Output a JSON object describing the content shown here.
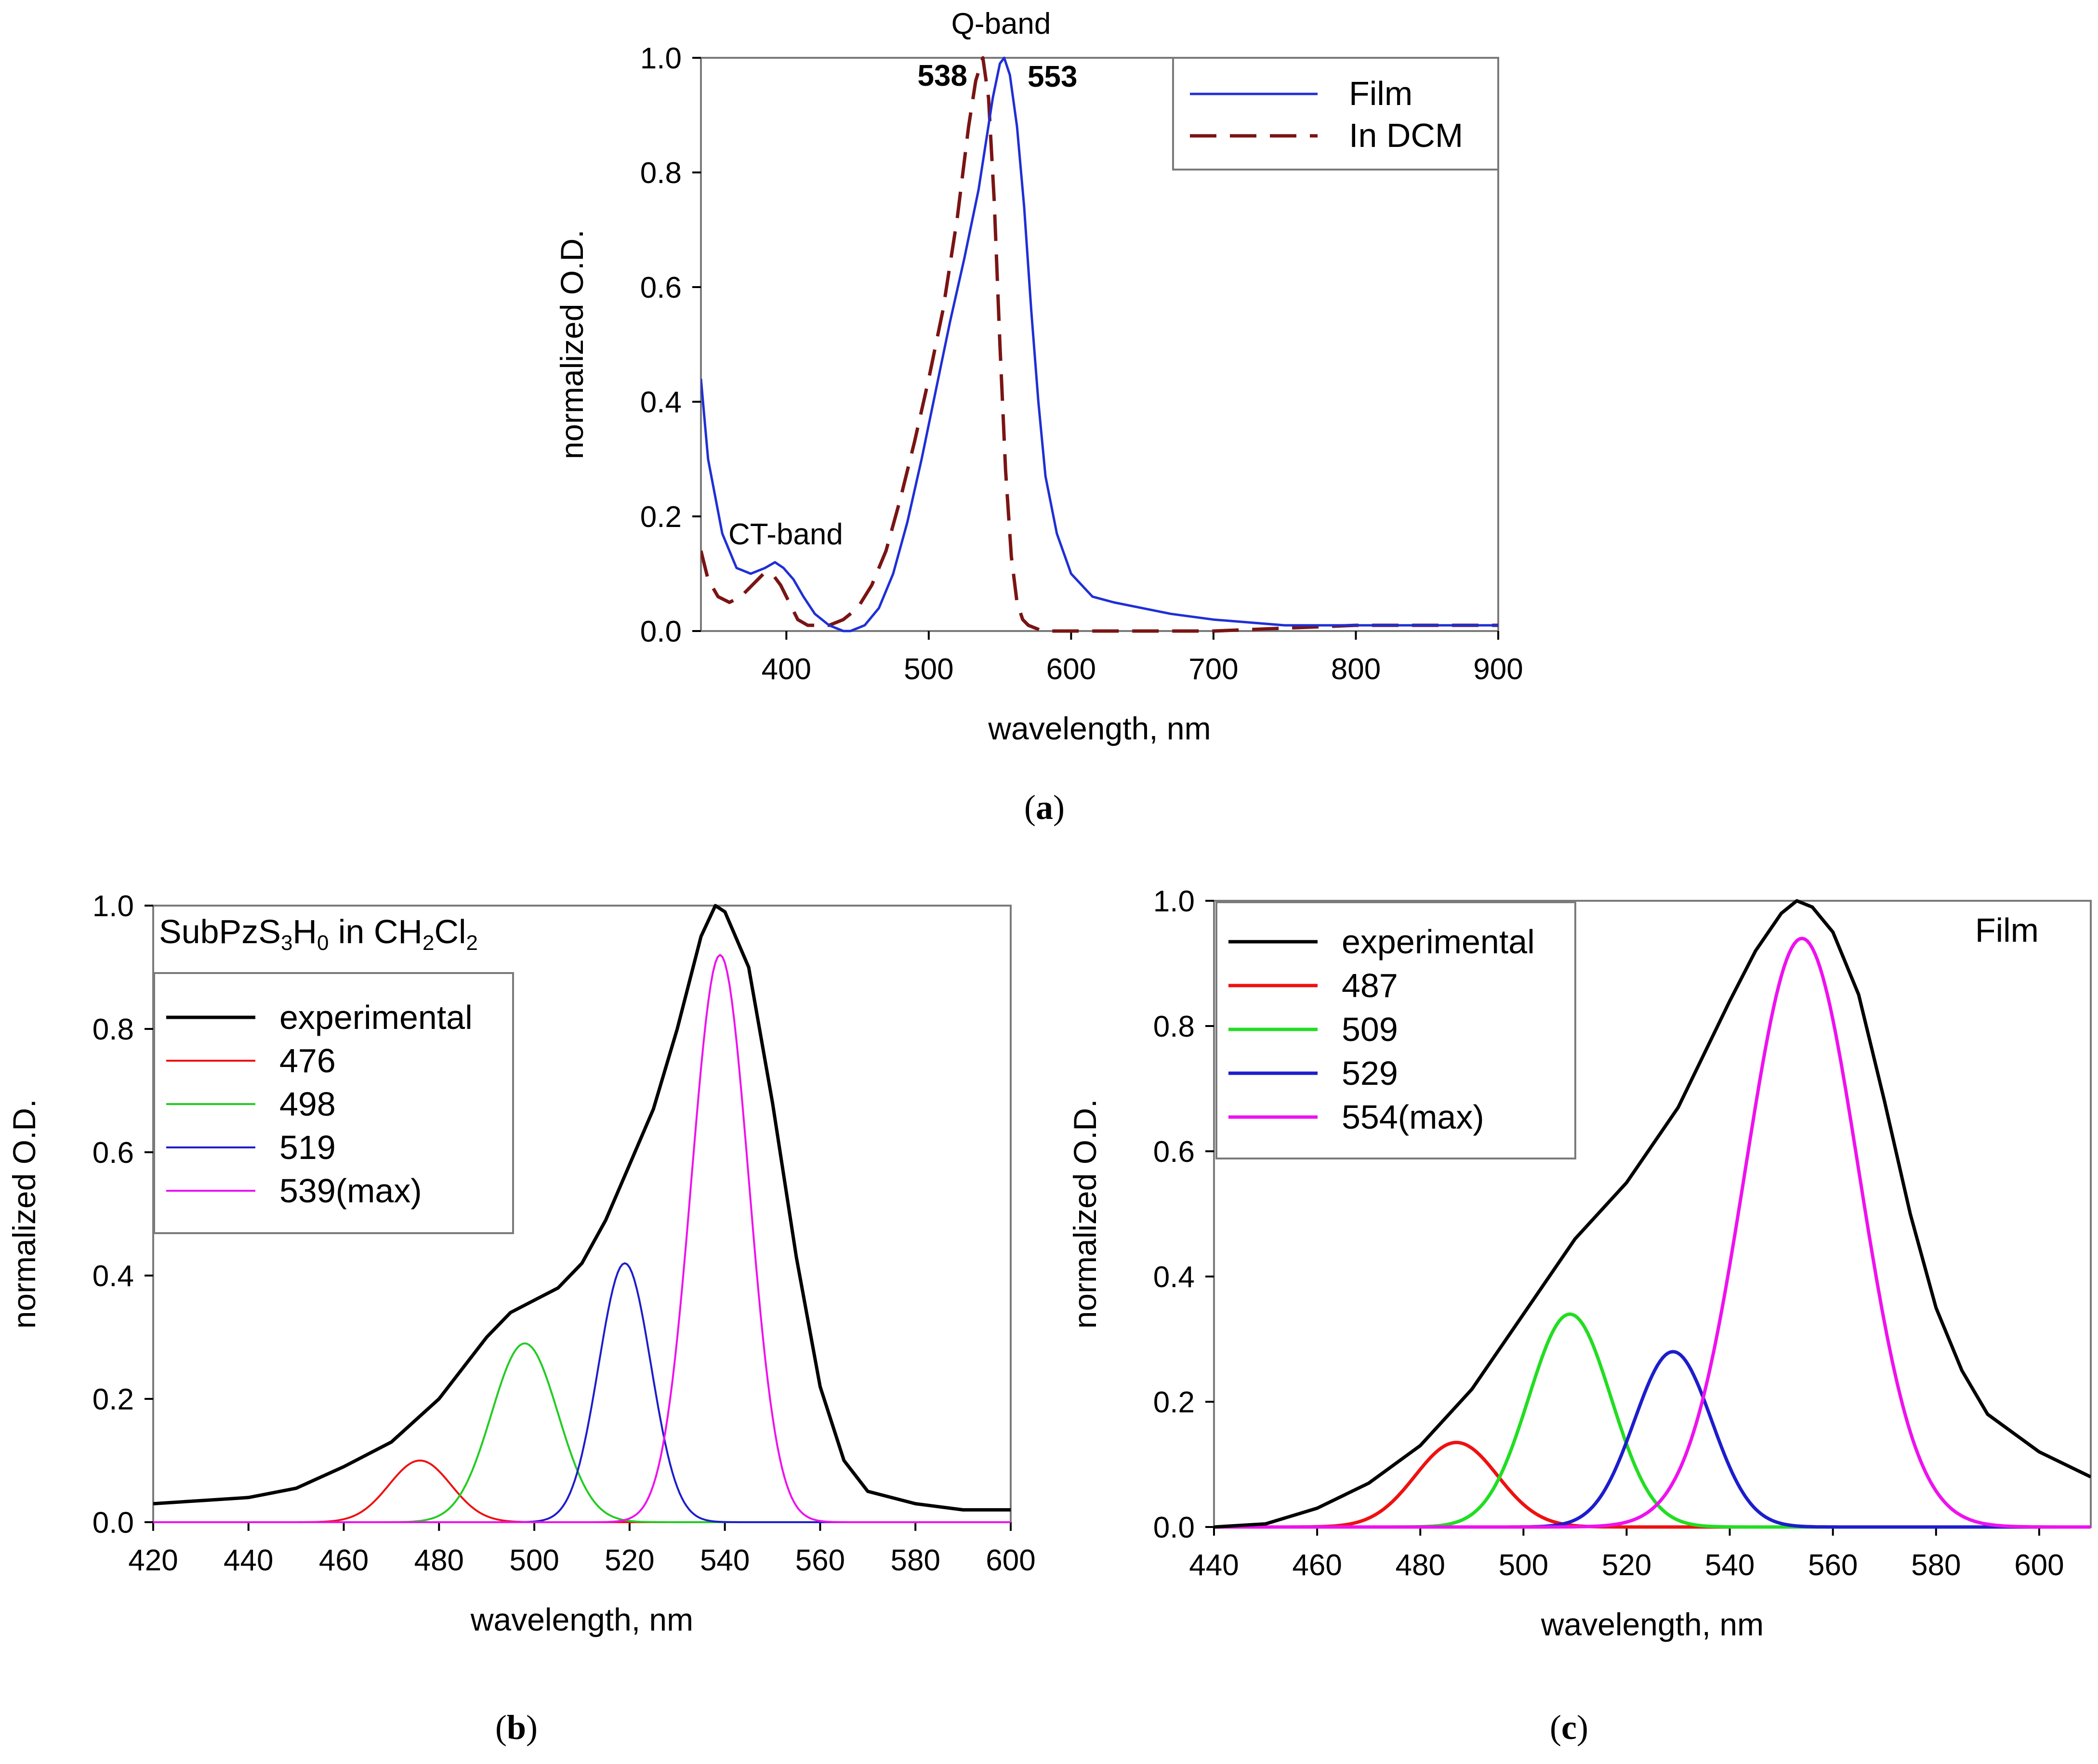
{
  "chart_data": [
    {
      "type": "line",
      "panel": "a",
      "panel_label": "a",
      "xlabel": "wavelength, nm",
      "ylabel": "normalized O.D.",
      "xlim": [
        340,
        900
      ],
      "ylim": [
        0.0,
        1.0
      ],
      "xticks": [
        400,
        500,
        600,
        700,
        800,
        900
      ],
      "yticks": [
        0.0,
        0.2,
        0.4,
        0.6,
        0.8,
        1.0
      ],
      "legend": "top-right",
      "colors": {
        "film": "#1f2fd6",
        "dcm": "#7a1414"
      },
      "series": [
        {
          "name": "Film",
          "color": "#1f2fd6",
          "dash": "solid",
          "x": [
            340,
            345,
            355,
            365,
            375,
            385,
            392,
            398,
            405,
            412,
            420,
            430,
            440,
            445,
            455,
            465,
            475,
            485,
            495,
            505,
            515,
            525,
            535,
            545,
            550,
            553,
            557,
            562,
            567,
            572,
            577,
            582,
            590,
            600,
            615,
            630,
            650,
            670,
            700,
            750,
            800,
            850,
            900
          ],
          "y": [
            0.44,
            0.3,
            0.17,
            0.11,
            0.1,
            0.11,
            0.12,
            0.11,
            0.09,
            0.06,
            0.03,
            0.01,
            0.0,
            0.0,
            0.01,
            0.04,
            0.1,
            0.19,
            0.3,
            0.42,
            0.54,
            0.65,
            0.77,
            0.93,
            0.99,
            1.0,
            0.97,
            0.88,
            0.74,
            0.56,
            0.4,
            0.27,
            0.17,
            0.1,
            0.06,
            0.05,
            0.04,
            0.03,
            0.02,
            0.01,
            0.01,
            0.01,
            0.01
          ]
        },
        {
          "name": "In DCM",
          "color": "#7a1414",
          "dash": "dashed",
          "x": [
            340,
            345,
            352,
            360,
            368,
            376,
            384,
            390,
            396,
            402,
            408,
            415,
            422,
            430,
            440,
            450,
            460,
            470,
            480,
            490,
            500,
            510,
            520,
            528,
            533,
            538,
            542,
            546,
            550,
            554,
            558,
            562,
            566,
            570,
            580,
            600,
            650,
            700,
            800,
            900
          ],
          "y": [
            0.14,
            0.09,
            0.06,
            0.05,
            0.06,
            0.08,
            0.1,
            0.1,
            0.08,
            0.05,
            0.02,
            0.01,
            0.01,
            0.01,
            0.02,
            0.04,
            0.08,
            0.14,
            0.23,
            0.33,
            0.44,
            0.56,
            0.72,
            0.88,
            0.96,
            1.0,
            0.93,
            0.75,
            0.5,
            0.28,
            0.13,
            0.05,
            0.02,
            0.01,
            0.0,
            0.0,
            0.0,
            0.0,
            0.01,
            0.01
          ]
        }
      ],
      "annotations": [
        {
          "text": "Q-band",
          "x": 553,
          "y": 1.02,
          "color": "#000000"
        },
        {
          "text": "538",
          "x": 538,
          "y": 0.96,
          "color": "#7a1414"
        },
        {
          "text": "553",
          "x": 553,
          "y": 0.96,
          "color": "#1f2fd6"
        },
        {
          "text": "CT-band",
          "x": 392,
          "y": 0.15,
          "color": "#000000"
        }
      ]
    },
    {
      "type": "line",
      "panel": "b",
      "panel_label": "b",
      "xlabel": "wavelength, nm",
      "ylabel": "normalized O.D.",
      "xlim": [
        420,
        600
      ],
      "ylim": [
        0.0,
        1.0
      ],
      "xticks": [
        420,
        440,
        460,
        480,
        500,
        520,
        540,
        560,
        580,
        600
      ],
      "yticks": [
        0.0,
        0.2,
        0.4,
        0.6,
        0.8,
        1.0
      ],
      "legend": "top-left",
      "title_annotation": {
        "base1": "SubPzS",
        "sub1": "3",
        "base2": "H",
        "sub2": "0",
        "base3": " in CH",
        "sub3": "2",
        "base4": "Cl",
        "sub4": "2"
      },
      "experimental": {
        "name": "experimental",
        "color": "#000000",
        "x": [
          420,
          430,
          440,
          450,
          460,
          470,
          480,
          490,
          495,
          500,
          505,
          510,
          515,
          520,
          525,
          530,
          535,
          538,
          540,
          545,
          550,
          555,
          560,
          565,
          570,
          580,
          590,
          600
        ],
        "y": [
          0.03,
          0.035,
          0.04,
          0.055,
          0.09,
          0.13,
          0.2,
          0.3,
          0.34,
          0.36,
          0.38,
          0.42,
          0.49,
          0.58,
          0.67,
          0.8,
          0.95,
          1.0,
          0.99,
          0.9,
          0.68,
          0.43,
          0.22,
          0.1,
          0.05,
          0.03,
          0.02,
          0.02
        ]
      },
      "components": [
        {
          "name": "476",
          "color": "#ee1111",
          "center": 476,
          "amp": 0.1,
          "sigma": 6.5
        },
        {
          "name": "498",
          "color": "#22cc22",
          "center": 498,
          "amp": 0.29,
          "sigma": 7.0
        },
        {
          "name": "519",
          "color": "#1d1dcc",
          "center": 519,
          "amp": 0.42,
          "sigma": 5.5
        },
        {
          "name": "539(max)",
          "color": "#ee11ee",
          "center": 539,
          "amp": 0.92,
          "sigma": 6.0
        }
      ]
    },
    {
      "type": "line",
      "panel": "c",
      "panel_label": "c",
      "xlabel": "wavelength, nm",
      "ylabel": "normalized O.D.",
      "xlim": [
        440,
        610
      ],
      "ylim": [
        0.0,
        1.0
      ],
      "xticks": [
        440,
        460,
        480,
        500,
        520,
        540,
        560,
        580,
        600
      ],
      "yticks": [
        0.0,
        0.2,
        0.4,
        0.6,
        0.8,
        1.0
      ],
      "legend": "top-left",
      "title_annotation": {
        "text": "Film"
      },
      "experimental": {
        "name": "experimental",
        "color": "#000000",
        "x": [
          440,
          450,
          460,
          470,
          480,
          490,
          500,
          510,
          520,
          530,
          540,
          545,
          550,
          553,
          556,
          560,
          565,
          570,
          575,
          580,
          585,
          590,
          600,
          610
        ],
        "y": [
          0.0,
          0.005,
          0.03,
          0.07,
          0.13,
          0.22,
          0.34,
          0.46,
          0.55,
          0.67,
          0.84,
          0.92,
          0.98,
          1.0,
          0.99,
          0.95,
          0.85,
          0.68,
          0.5,
          0.35,
          0.25,
          0.18,
          0.12,
          0.08
        ]
      },
      "components": [
        {
          "name": "487",
          "color": "#ee1111",
          "center": 487,
          "amp": 0.135,
          "sigma": 8.0
        },
        {
          "name": "509",
          "color": "#22dd22",
          "center": 509,
          "amp": 0.34,
          "sigma": 8.0
        },
        {
          "name": "529",
          "color": "#1d1dcc",
          "center": 529,
          "amp": 0.28,
          "sigma": 7.5
        },
        {
          "name": "554(max)",
          "color": "#ee11ee",
          "center": 554,
          "amp": 0.94,
          "sigma": 11.0
        }
      ]
    }
  ]
}
